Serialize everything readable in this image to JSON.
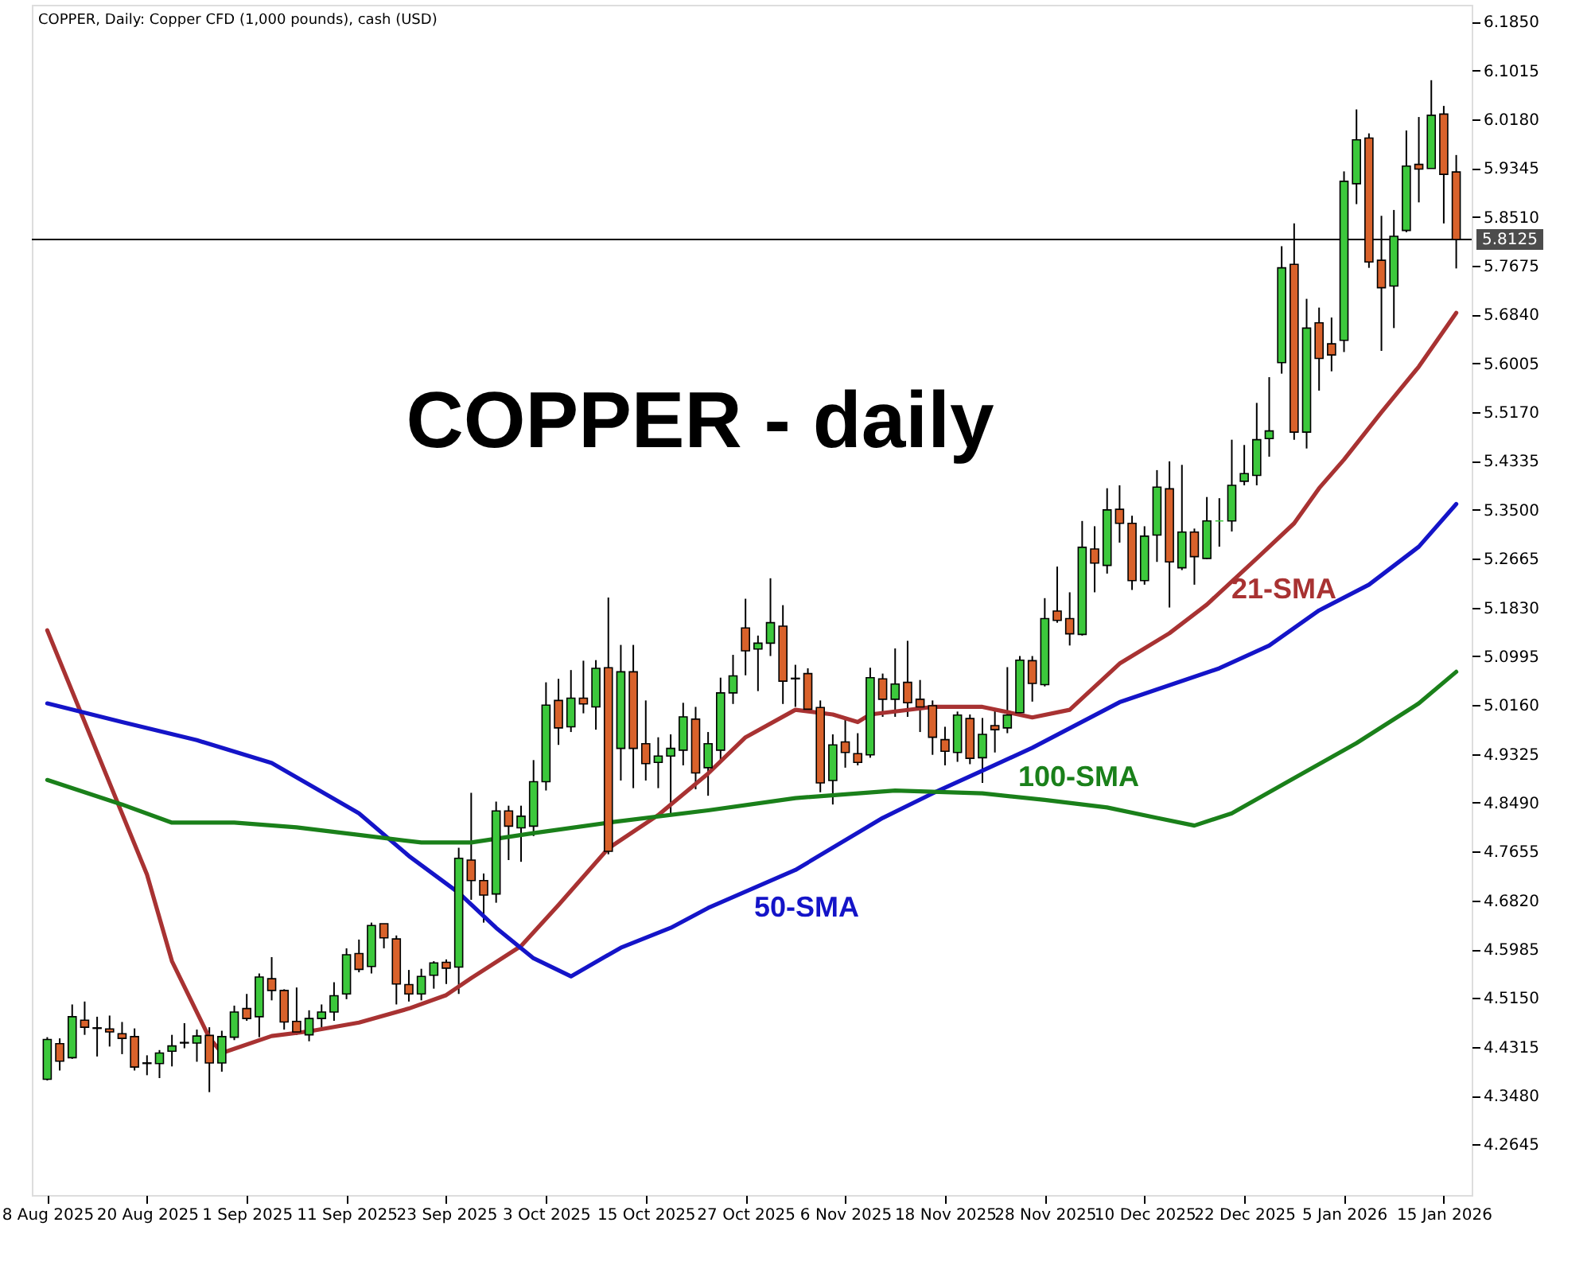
{
  "chart_data": {
    "type": "candlestick",
    "title": "COPPER, Daily:  Copper CFD (1,000 pounds), cash (USD)",
    "annotations": [
      "COPPER - daily"
    ],
    "categories": [
      "8 Aug 2025",
      null,
      null,
      null,
      null,
      null,
      null,
      null,
      "20 Aug 2025",
      null,
      null,
      null,
      null,
      null,
      null,
      null,
      "1 Sep 2025",
      null,
      null,
      null,
      null,
      null,
      null,
      null,
      "11 Sep 2025",
      null,
      null,
      null,
      null,
      null,
      null,
      null,
      "23 Sep 2025",
      null,
      null,
      null,
      null,
      null,
      null,
      null,
      "3 Oct 2025",
      null,
      null,
      null,
      null,
      null,
      null,
      null,
      "15 Oct 2025",
      null,
      null,
      null,
      null,
      null,
      null,
      null,
      "27 Oct 2025",
      null,
      null,
      null,
      null,
      null,
      null,
      null,
      "6 Nov 2025",
      null,
      null,
      null,
      null,
      null,
      null,
      null,
      "18 Nov 2025",
      null,
      null,
      null,
      null,
      null,
      null,
      null,
      "28 Nov 2025",
      null,
      null,
      null,
      null,
      null,
      null,
      null,
      "10 Dec 2025",
      null,
      null,
      null,
      null,
      null,
      null,
      null,
      "22 Dec 2025",
      null,
      null,
      null,
      null,
      null,
      null,
      null,
      "5 Jan 2026",
      null,
      null,
      null,
      null,
      null,
      null,
      null,
      "15 Jan 2026",
      null
    ],
    "ohlc": [
      [
        4.376,
        4.448,
        4.374,
        4.444
      ],
      [
        4.437,
        4.446,
        4.391,
        4.407
      ],
      [
        4.413,
        4.504,
        4.411,
        4.483
      ],
      [
        4.477,
        4.509,
        4.452,
        4.465
      ],
      [
        4.464,
        4.483,
        4.415,
        4.463
      ],
      [
        4.462,
        4.485,
        4.432,
        4.457
      ],
      [
        4.454,
        4.474,
        4.419,
        4.446
      ],
      [
        4.449,
        4.463,
        4.391,
        4.397
      ],
      [
        4.404,
        4.417,
        4.383,
        4.403
      ],
      [
        4.403,
        4.426,
        4.378,
        4.421
      ],
      [
        4.424,
        4.452,
        4.398,
        4.433
      ],
      [
        4.438,
        4.472,
        4.429,
        4.439
      ],
      [
        4.438,
        4.461,
        4.406,
        4.45
      ],
      [
        4.451,
        4.465,
        4.354,
        4.404
      ],
      [
        4.404,
        4.459,
        4.389,
        4.449
      ],
      [
        4.448,
        4.502,
        4.443,
        4.491
      ],
      [
        4.497,
        4.522,
        4.476,
        4.48
      ],
      [
        4.483,
        4.557,
        4.448,
        4.551
      ],
      [
        4.548,
        4.585,
        4.511,
        4.528
      ],
      [
        4.528,
        4.53,
        4.461,
        4.474
      ],
      [
        4.475,
        4.533,
        4.452,
        4.457
      ],
      [
        4.452,
        4.494,
        4.441,
        4.48
      ],
      [
        4.48,
        4.504,
        4.465,
        4.491
      ],
      [
        4.491,
        4.542,
        4.476,
        4.519
      ],
      [
        4.522,
        4.6,
        4.513,
        4.589
      ],
      [
        4.591,
        4.615,
        4.559,
        4.564
      ],
      [
        4.569,
        4.644,
        4.557,
        4.639
      ],
      [
        4.642,
        4.642,
        4.6,
        4.618
      ],
      [
        4.616,
        4.622,
        4.504,
        4.539
      ],
      [
        4.538,
        4.563,
        4.509,
        4.522
      ],
      [
        4.522,
        4.565,
        4.511,
        4.552
      ],
      [
        4.554,
        4.578,
        4.531,
        4.575
      ],
      [
        4.576,
        4.581,
        4.539,
        4.566
      ],
      [
        4.568,
        4.772,
        4.522,
        4.754
      ],
      [
        4.751,
        4.866,
        4.683,
        4.716
      ],
      [
        4.716,
        4.728,
        4.644,
        4.691
      ],
      [
        4.693,
        4.851,
        4.678,
        4.835
      ],
      [
        4.835,
        4.844,
        4.751,
        4.809
      ],
      [
        4.806,
        4.844,
        4.748,
        4.826
      ],
      [
        4.809,
        4.922,
        4.792,
        4.885
      ],
      [
        4.885,
        5.055,
        4.87,
        5.016
      ],
      [
        5.024,
        5.061,
        4.948,
        4.977
      ],
      [
        4.979,
        5.076,
        4.97,
        5.028
      ],
      [
        5.028,
        5.092,
        5.002,
        5.018
      ],
      [
        5.013,
        5.093,
        4.974,
        5.079
      ],
      [
        5.08,
        5.2,
        4.761,
        4.766
      ],
      [
        4.942,
        5.119,
        4.887,
        5.073
      ],
      [
        5.073,
        5.119,
        4.874,
        4.942
      ],
      [
        4.95,
        5.024,
        4.887,
        4.916
      ],
      [
        4.918,
        4.961,
        4.874,
        4.929
      ],
      [
        4.929,
        4.966,
        4.831,
        4.942
      ],
      [
        4.939,
        5.02,
        4.913,
        4.996
      ],
      [
        4.992,
        5.013,
        4.872,
        4.9
      ],
      [
        4.909,
        4.97,
        4.861,
        4.95
      ],
      [
        4.939,
        5.063,
        4.922,
        5.037
      ],
      [
        5.037,
        5.102,
        5.018,
        5.066
      ],
      [
        5.148,
        5.198,
        5.067,
        5.109
      ],
      [
        5.112,
        5.135,
        5.04,
        5.122
      ],
      [
        5.122,
        5.233,
        5.1,
        5.157
      ],
      [
        5.151,
        5.187,
        5.018,
        5.057
      ],
      [
        5.062,
        5.085,
        5.013,
        5.061
      ],
      [
        5.07,
        5.079,
        5.005,
        5.009
      ],
      [
        5.012,
        5.024,
        4.867,
        4.883
      ],
      [
        4.887,
        4.966,
        4.846,
        4.948
      ],
      [
        4.953,
        4.992,
        4.909,
        4.935
      ],
      [
        4.933,
        4.968,
        4.913,
        4.918
      ],
      [
        4.931,
        5.08,
        4.926,
        5.063
      ],
      [
        5.061,
        5.07,
        4.996,
        5.026
      ],
      [
        5.026,
        5.113,
        4.996,
        5.052
      ],
      [
        5.055,
        5.126,
        4.996,
        5.02
      ],
      [
        5.026,
        5.059,
        4.97,
        5.013
      ],
      [
        5.015,
        5.024,
        4.931,
        4.961
      ],
      [
        4.957,
        4.979,
        4.913,
        4.937
      ],
      [
        4.935,
        5.005,
        4.919,
        4.999
      ],
      [
        4.993,
        5.0,
        4.915,
        4.925
      ],
      [
        4.926,
        4.994,
        4.883,
        4.966
      ],
      [
        4.981,
        5.009,
        4.935,
        4.974
      ],
      [
        4.977,
        5.081,
        4.968,
        4.999
      ],
      [
        5.003,
        5.1,
        5.0,
        5.093
      ],
      [
        5.092,
        5.1,
        5.022,
        5.053
      ],
      [
        5.051,
        5.199,
        5.048,
        5.164
      ],
      [
        5.177,
        5.253,
        5.157,
        5.161
      ],
      [
        5.164,
        5.209,
        5.118,
        5.138
      ],
      [
        5.137,
        5.331,
        5.135,
        5.286
      ],
      [
        5.283,
        5.322,
        5.209,
        5.259
      ],
      [
        5.255,
        5.387,
        5.241,
        5.35
      ],
      [
        5.351,
        5.392,
        5.294,
        5.327
      ],
      [
        5.327,
        5.34,
        5.213,
        5.229
      ],
      [
        5.229,
        5.322,
        5.222,
        5.305
      ],
      [
        5.307,
        5.418,
        5.261,
        5.389
      ],
      [
        5.386,
        5.433,
        5.183,
        5.261
      ],
      [
        5.251,
        5.427,
        5.247,
        5.312
      ],
      [
        5.312,
        5.318,
        5.222,
        5.27
      ],
      [
        5.267,
        5.372,
        5.266,
        5.331
      ],
      [
        5.331,
        5.37,
        5.287,
        5.331
      ],
      [
        5.331,
        5.47,
        5.313,
        5.392
      ],
      [
        5.399,
        5.461,
        5.392,
        5.412
      ],
      [
        5.409,
        5.533,
        5.392,
        5.47
      ],
      [
        5.472,
        5.577,
        5.441,
        5.485
      ],
      [
        5.602,
        5.801,
        5.583,
        5.764
      ],
      [
        5.77,
        5.84,
        5.47,
        5.483
      ],
      [
        5.483,
        5.711,
        5.455,
        5.661
      ],
      [
        5.67,
        5.696,
        5.554,
        5.609
      ],
      [
        5.634,
        5.679,
        5.587,
        5.615
      ],
      [
        5.64,
        5.929,
        5.62,
        5.912
      ],
      [
        5.908,
        6.035,
        5.873,
        5.983
      ],
      [
        5.986,
        5.994,
        5.764,
        5.774
      ],
      [
        5.777,
        5.853,
        5.622,
        5.73
      ],
      [
        5.733,
        5.863,
        5.661,
        5.818
      ],
      [
        5.828,
        5.999,
        5.825,
        5.938
      ],
      [
        5.941,
        6.022,
        5.876,
        5.933
      ],
      [
        5.934,
        6.085,
        5.934,
        6.025
      ],
      [
        6.027,
        6.041,
        5.84,
        5.924
      ],
      [
        5.928,
        5.957,
        5.763,
        5.8125
      ]
    ],
    "colors": [
      "#3cc83c",
      "#d9622b",
      "#3cc83c",
      "#d9622b",
      "#d9622b",
      "#d9622b",
      "#d9622b",
      "#d9622b",
      "#d9622b",
      "#3cc83c",
      "#3cc83c",
      "#3cc83c",
      "#3cc83c",
      "#d9622b",
      "#3cc83c",
      "#3cc83c",
      "#d9622b",
      "#3cc83c",
      "#d9622b",
      "#d9622b",
      "#d9622b",
      "#3cc83c",
      "#3cc83c",
      "#3cc83c",
      "#3cc83c",
      "#d9622b",
      "#3cc83c",
      "#d9622b",
      "#d9622b",
      "#d9622b",
      "#3cc83c",
      "#3cc83c",
      "#d9622b",
      "#3cc83c",
      "#d9622b",
      "#d9622b",
      "#3cc83c",
      "#d9622b",
      "#3cc83c",
      "#3cc83c",
      "#3cc83c",
      "#d9622b",
      "#3cc83c",
      "#d9622b",
      "#3cc83c",
      "#d9622b",
      "#3cc83c",
      "#d9622b",
      "#d9622b",
      "#3cc83c",
      "#3cc83c",
      "#3cc83c",
      "#d9622b",
      "#3cc83c",
      "#3cc83c",
      "#3cc83c",
      "#d9622b",
      "#3cc83c",
      "#3cc83c",
      "#d9622b",
      "#d9622b",
      "#d9622b",
      "#d9622b",
      "#3cc83c",
      "#d9622b",
      "#d9622b",
      "#3cc83c",
      "#d9622b",
      "#3cc83c",
      "#d9622b",
      "#d9622b",
      "#d9622b",
      "#d9622b",
      "#3cc83c",
      "#d9622b",
      "#3cc83c",
      "#d9622b",
      "#3cc83c",
      "#3cc83c",
      "#d9622b",
      "#3cc83c",
      "#d9622b",
      "#d9622b",
      "#3cc83c",
      "#d9622b",
      "#3cc83c",
      "#d9622b",
      "#d9622b",
      "#3cc83c",
      "#3cc83c",
      "#d9622b",
      "#3cc83c",
      "#d9622b",
      "#3cc83c",
      "#3cc83c",
      "#3cc83c",
      "#3cc83c",
      "#3cc83c",
      "#3cc83c",
      "#3cc83c",
      "#d9622b",
      "#3cc83c",
      "#d9622b",
      "#d9622b",
      "#3cc83c",
      "#3cc83c",
      "#d9622b",
      "#d9622b",
      "#3cc83c",
      "#3cc83c",
      "#d9622b",
      "#3cc83c",
      "#d9622b",
      "#d9622b"
    ],
    "series": [
      {
        "name": "21-SMA",
        "type": "line",
        "color": "#a83232",
        "values": [
          5.144,
          null,
          null,
          null,
          4.935,
          null,
          null,
          null,
          4.726,
          null,
          4.578,
          null,
          null,
          4.447,
          4.421,
          null,
          null,
          null,
          4.45,
          null,
          null,
          4.458,
          null,
          null,
          null,
          4.473,
          null,
          null,
          null,
          4.497,
          null,
          null,
          4.52,
          null,
          4.549,
          null,
          null,
          null,
          4.604,
          null,
          null,
          4.674,
          null,
          null,
          null,
          4.771,
          null,
          null,
          null,
          4.828,
          null,
          null,
          null,
          4.899,
          null,
          null,
          4.961,
          null,
          null,
          null,
          5.008,
          null,
          null,
          5.0,
          null,
          4.987,
          5.0,
          null,
          null,
          null,
          null,
          5.013,
          null,
          null,
          null,
          5.013,
          null,
          null,
          null,
          4.995,
          null,
          null,
          5.008,
          null,
          null,
          null,
          5.087,
          null,
          null,
          null,
          5.139,
          null,
          null,
          5.188,
          null,
          null,
          null,
          5.267,
          null,
          null,
          5.327,
          null,
          5.387,
          null,
          5.436,
          null,
          null,
          5.517,
          null,
          null,
          5.595,
          null,
          null,
          5.687
        ]
      },
      {
        "name": "50-SMA",
        "type": "line",
        "color": "#1414c8",
        "values": [
          5.019,
          null,
          null,
          null,
          null,
          null,
          4.987,
          null,
          null,
          null,
          null,
          null,
          4.956,
          null,
          null,
          null,
          null,
          null,
          4.917,
          null,
          null,
          null,
          null,
          null,
          null,
          4.831,
          null,
          null,
          null,
          4.758,
          null,
          null,
          null,
          4.695,
          null,
          null,
          4.635,
          null,
          null,
          4.583,
          null,
          null,
          4.552,
          null,
          null,
          null,
          4.601,
          null,
          null,
          null,
          4.635,
          null,
          null,
          4.669,
          null,
          null,
          null,
          null,
          null,
          null,
          4.734,
          null,
          null,
          null,
          null,
          null,
          null,
          4.823,
          null,
          null,
          null,
          4.865,
          null,
          null,
          null,
          4.904,
          null,
          null,
          null,
          4.943,
          null,
          null,
          null,
          null,
          null,
          null,
          5.021,
          null,
          null,
          null,
          null,
          null,
          null,
          null,
          5.079,
          null,
          null,
          null,
          5.118,
          null,
          null,
          null,
          5.178,
          null,
          null,
          null,
          5.222,
          null,
          null,
          null,
          5.287,
          null,
          null,
          5.36
        ]
      },
      {
        "name": "100-SMA",
        "type": "line",
        "color": "#1a801a",
        "values": [
          4.888,
          null,
          null,
          null,
          null,
          null,
          4.846,
          null,
          null,
          null,
          4.815,
          null,
          null,
          null,
          null,
          4.815,
          null,
          null,
          null,
          null,
          4.807,
          null,
          null,
          null,
          null,
          4.794,
          null,
          null,
          null,
          null,
          4.781,
          null,
          null,
          null,
          4.781,
          null,
          null,
          null,
          null,
          4.797,
          null,
          null,
          null,
          null,
          null,
          4.815,
          null,
          null,
          null,
          null,
          null,
          null,
          null,
          4.836,
          null,
          null,
          null,
          null,
          null,
          null,
          4.857,
          null,
          null,
          null,
          null,
          null,
          null,
          null,
          4.87,
          null,
          null,
          null,
          null,
          null,
          null,
          4.865,
          null,
          null,
          null,
          null,
          4.854,
          null,
          null,
          null,
          null,
          4.841,
          null,
          null,
          null,
          4.823,
          null,
          null,
          4.81,
          null,
          null,
          4.831,
          null,
          null,
          null,
          null,
          4.891,
          null,
          null,
          null,
          null,
          4.951,
          null,
          null,
          null,
          null,
          5.019,
          null,
          null,
          5.073
        ]
      }
    ],
    "ref_lines": [
      {
        "axis": "y",
        "value": 5.8125,
        "label": "5.8125",
        "color": "#000000"
      }
    ],
    "ylim": [
      4.178,
      6.214
    ],
    "yticks": [
      {
        "value": 4.2645,
        "label": "4.2645"
      },
      {
        "value": 4.348,
        "label": "4.3480"
      },
      {
        "value": 4.4315,
        "label": "4.4315"
      },
      {
        "value": 4.515,
        "label": "4.5150"
      },
      {
        "value": 4.5985,
        "label": "4.5985"
      },
      {
        "value": 4.682,
        "label": "4.6820"
      },
      {
        "value": 4.7655,
        "label": "4.7655"
      },
      {
        "value": 4.849,
        "label": "4.8490"
      },
      {
        "value": 4.9325,
        "label": "4.9325"
      },
      {
        "value": 5.016,
        "label": "5.0160"
      },
      {
        "value": 5.0995,
        "label": "5.0995"
      },
      {
        "value": 5.183,
        "label": "5.1830"
      },
      {
        "value": 5.2665,
        "label": "5.2665"
      },
      {
        "value": 5.35,
        "label": "5.3500"
      },
      {
        "value": 5.4335,
        "label": "5.4335"
      },
      {
        "value": 5.517,
        "label": "5.5170"
      },
      {
        "value": 5.6005,
        "label": "5.6005"
      },
      {
        "value": 5.684,
        "label": "5.6840"
      },
      {
        "value": 5.7675,
        "label": "5.7675"
      },
      {
        "value": 5.851,
        "label": "5.8510"
      },
      {
        "value": 5.9345,
        "label": "5.9345"
      },
      {
        "value": 6.018,
        "label": "6.0180"
      },
      {
        "value": 6.1015,
        "label": "6.1015"
      },
      {
        "value": 6.185,
        "label": "6.1850"
      }
    ]
  }
}
